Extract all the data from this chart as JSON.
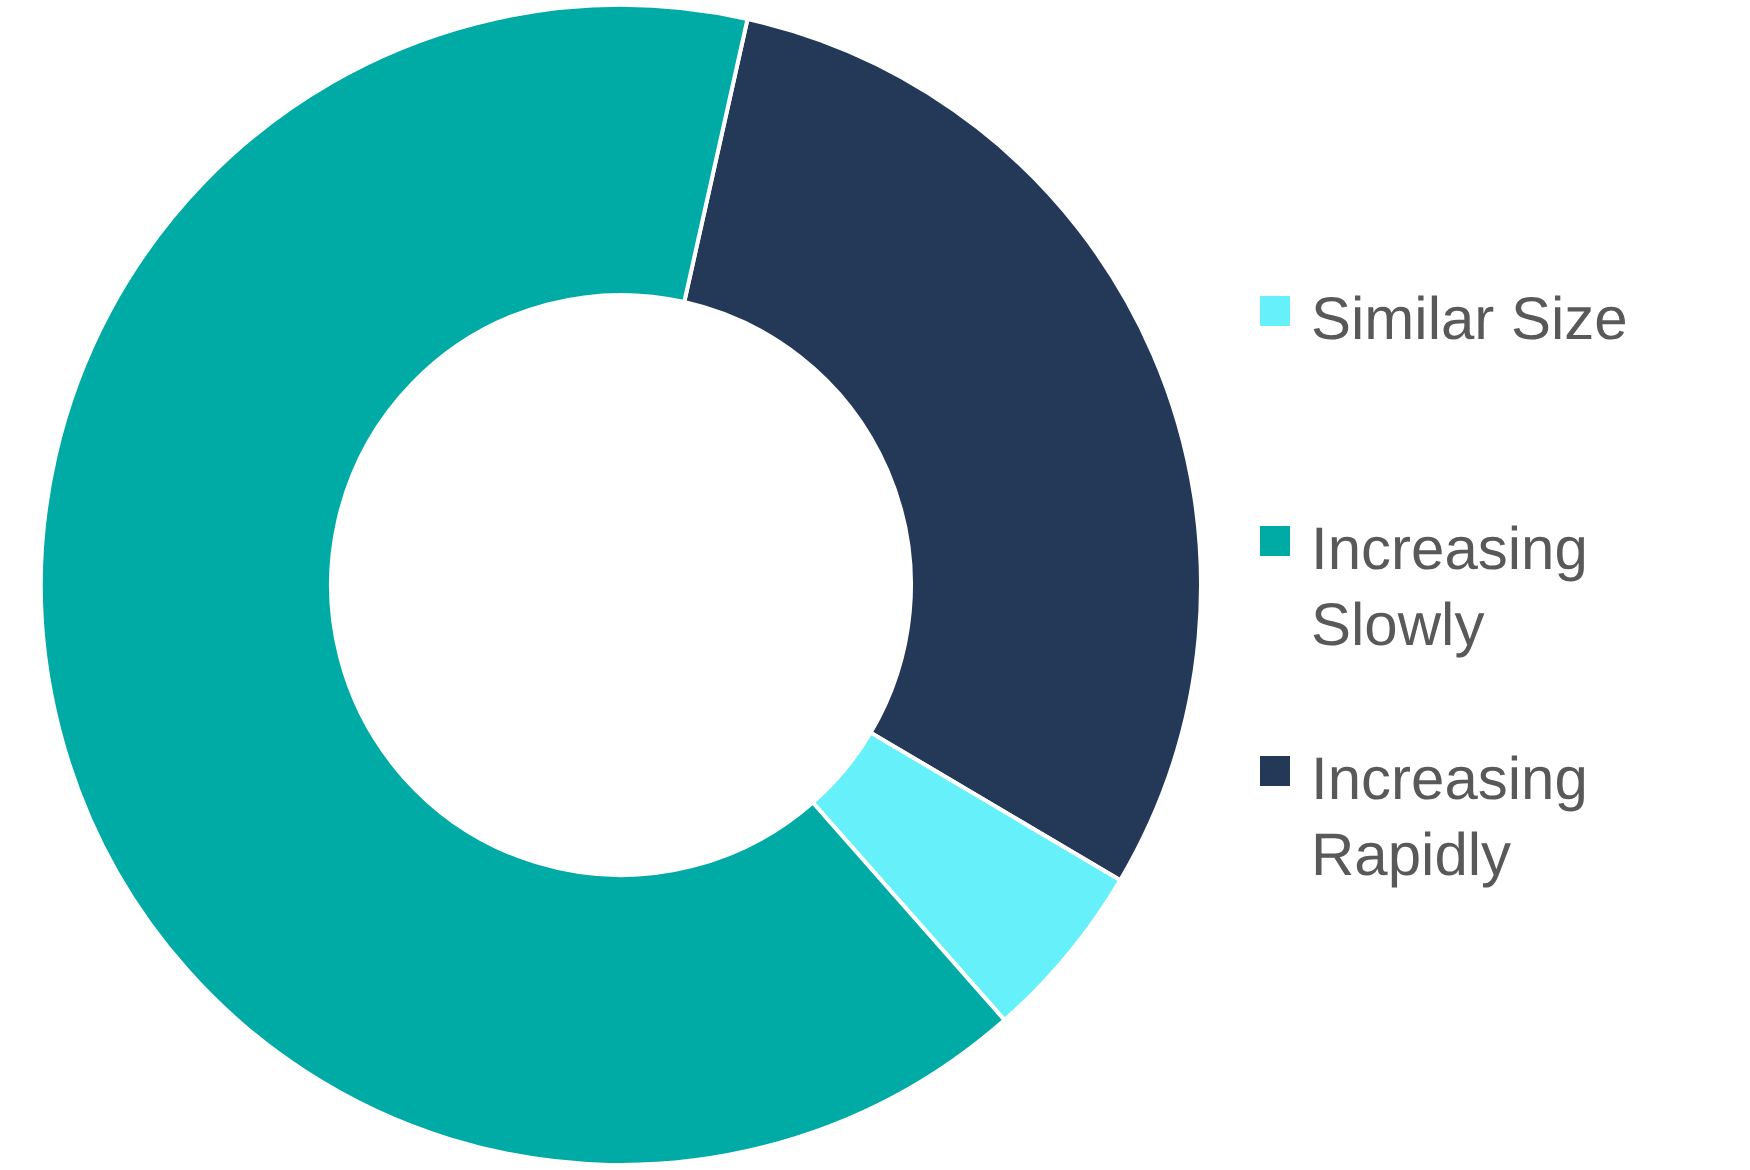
{
  "chart_data": {
    "type": "donut",
    "categories": [
      "Similar Size",
      "Increasing Slowly",
      "Increasing Rapidly"
    ],
    "values": [
      5,
      65,
      30
    ],
    "colors": [
      "#66f0fa",
      "#00aaa5",
      "#243858"
    ],
    "legend": "right"
  }
}
